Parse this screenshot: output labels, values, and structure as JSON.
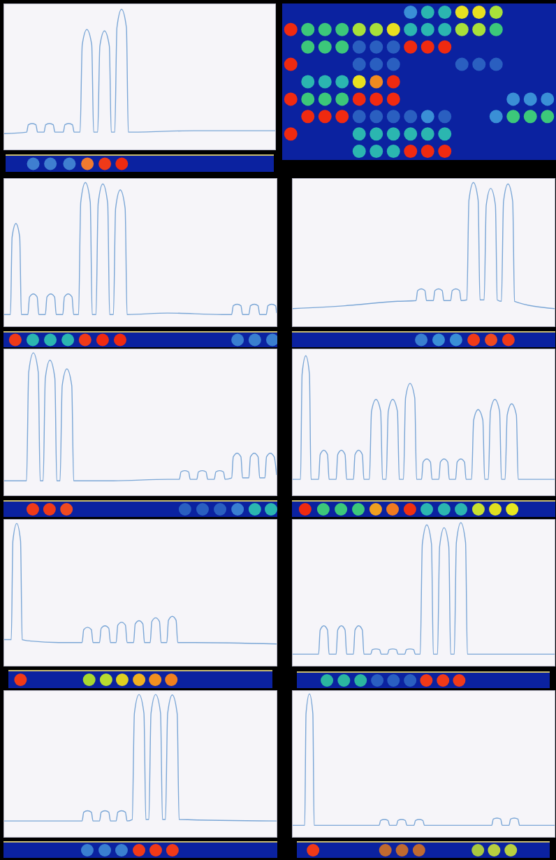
{
  "chart_data": [
    {
      "type": "line",
      "color": "#7aa6d6",
      "xlim": [
        0,
        100
      ],
      "ylim": [
        0,
        100
      ],
      "tick_labels": false,
      "x": [
        0,
        8.3,
        8.9,
        10.3,
        11.7,
        12.3,
        14.7,
        15.3,
        16.7,
        18.1,
        18.7,
        21.8,
        22.4,
        23.8,
        25.2,
        25.8,
        28,
        28.8,
        30.5,
        32.3,
        33,
        34.5,
        35.3,
        37,
        38.8,
        39.5,
        40.8,
        41.6,
        43.3,
        45.1,
        45.8,
        70,
        100
      ],
      "values": [
        11,
        12,
        17.1,
        18,
        17.1,
        12,
        12,
        17.1,
        18,
        17.1,
        12,
        12,
        17.1,
        18,
        17.1,
        12,
        12,
        72.4,
        83,
        72.4,
        12,
        12,
        71.5,
        82,
        71.5,
        12,
        12,
        84.3,
        97,
        84.3,
        12,
        13,
        13
      ],
      "spots": {
        "x": [
          10.3,
          16.7,
          23.8,
          30.5,
          37,
          43.3
        ],
        "colors": [
          "#3f7fd0",
          "#3f7fd0",
          "#3f7fd0",
          "#f07a30",
          "#f03a18",
          "#f02a10"
        ]
      }
    },
    {
      "type": "scatter",
      "xlim": [
        -0.5,
        15.5
      ],
      "ylim": [
        -0.5,
        8.5
      ],
      "tick_labels": false,
      "cells": [
        [
          null,
          null,
          null,
          null,
          null,
          null,
          null,
          "#3a8fd6",
          "#2bb6b0",
          "#2bb6b0",
          "#e8e020",
          "#e8e020",
          "#a8e03a",
          null,
          null,
          null
        ],
        [
          "#f02a10",
          "#3cc87a",
          "#3cc87a",
          "#3cc87a",
          "#a8e03a",
          "#a8e03a",
          "#e8e020",
          "#2bb6b0",
          "#2bb6b0",
          "#2bb6b0",
          "#a8e03a",
          "#a8e03a",
          "#3cc87a",
          null,
          null,
          null
        ],
        [
          null,
          "#3cc87a",
          "#3cc87a",
          "#3cc87a",
          "#2a5fc0",
          "#2a5fc0",
          "#2a5fc0",
          "#f02a10",
          "#f02a10",
          "#f02a10",
          null,
          null,
          null,
          null,
          null,
          null
        ],
        [
          "#f02a10",
          null,
          null,
          null,
          "#2a5fc0",
          "#2a5fc0",
          "#2a5fc0",
          null,
          null,
          null,
          "#2a5fc0",
          "#2a5fc0",
          "#2a5fc0",
          null,
          null,
          null
        ],
        [
          null,
          "#2bb6b0",
          "#2bb6b0",
          "#2bb6b0",
          "#e8e020",
          "#f08a20",
          "#f02a10",
          null,
          null,
          null,
          null,
          null,
          null,
          null,
          null,
          null
        ],
        [
          "#f02a10",
          "#3cc87a",
          "#3cc87a",
          "#3cc87a",
          "#f02a10",
          "#f02a10",
          "#f02a10",
          null,
          null,
          null,
          null,
          null,
          null,
          "#3a8fd6",
          "#3a8fd6",
          "#3a8fd6"
        ],
        [
          null,
          "#f02a10",
          "#f02a10",
          "#f02a10",
          "#2a5fc0",
          "#2a5fc0",
          "#2a5fc0",
          "#2a5fc0",
          "#3a8fd6",
          "#2a5fc0",
          null,
          null,
          "#3a8fd6",
          "#3cc87a",
          "#3cc87a",
          "#3cc87a"
        ],
        [
          "#f02a10",
          null,
          null,
          null,
          "#2bb6b0",
          "#2bb6b0",
          "#2bb6b0",
          "#2bb6b0",
          "#2bb6b0",
          "#2bb6b0",
          null,
          null,
          null,
          null,
          null,
          null
        ],
        [
          null,
          null,
          null,
          null,
          "#2bb6b0",
          "#2bb6b0",
          "#2bb6b0",
          "#f02a10",
          "#f02a10",
          "#f02a10",
          null,
          null,
          null,
          null,
          null,
          null
        ]
      ]
    },
    {
      "type": "line",
      "color": "#7aa6d6",
      "xlim": [
        0,
        100
      ],
      "ylim": [
        0,
        100
      ],
      "tick_labels": false,
      "x": [
        0,
        2.3,
        2.9,
        4.3,
        5.7,
        6.3,
        8.7,
        9.3,
        10.7,
        12.1,
        12.7,
        15.1,
        15.7,
        17.1,
        18.5,
        19.1,
        21.5,
        22.1,
        23.5,
        24.9,
        25.5,
        27.3,
        28.1,
        29.8,
        31.6,
        32.3,
        33.7,
        34.5,
        36.2,
        38,
        38.7,
        40.1,
        40.9,
        42.6,
        44.4,
        45.1,
        60,
        80,
        83.5,
        84.1,
        85.5,
        86.9,
        87.5,
        89.8,
        90.4,
        91.8,
        93.2,
        93.8,
        96.2,
        96.8,
        98.2,
        99.6,
        100
      ],
      "values": [
        8,
        8,
        60.7,
        70,
        60.7,
        8,
        8,
        19.9,
        22,
        19.9,
        8,
        8,
        19.9,
        22,
        19.9,
        8,
        8,
        19.9,
        22,
        19.9,
        8,
        8,
        84.5,
        98,
        84.5,
        8,
        8,
        83.6,
        97,
        83.6,
        8,
        8,
        80.3,
        93,
        80.3,
        8,
        9,
        8,
        8,
        14,
        15,
        14,
        8,
        8,
        14,
        15,
        14,
        8,
        8,
        14,
        15,
        14,
        9
      ],
      "spots": {
        "x": [
          4.3,
          10.7,
          17.1,
          23.5,
          29.8,
          36.2,
          42.6,
          85.5,
          91.8,
          98.2
        ],
        "colors": [
          "#f03a18",
          "#2bb6b0",
          "#2bb6b0",
          "#2bb6b0",
          "#f03a18",
          "#f02a10",
          "#f02a10",
          "#3a7fd0",
          "#3a7fd0",
          "#3a7fd0"
        ]
      }
    },
    {
      "type": "line",
      "color": "#7aa6d6",
      "xlim": [
        0,
        100
      ],
      "ylim": [
        0,
        100
      ],
      "tick_labels": false,
      "x": [
        0,
        20,
        40,
        47.1,
        47.7,
        49.1,
        50.5,
        51.1,
        53.7,
        54.3,
        55.7,
        57.1,
        57.7,
        60.3,
        60.9,
        62.3,
        63.7,
        64.3,
        66.5,
        67.3,
        69,
        70.8,
        71.5,
        73.1,
        73.9,
        75.6,
        77.4,
        78.1,
        79.7,
        80.5,
        82.2,
        84,
        84.7,
        100
      ],
      "values": [
        12,
        14,
        17,
        17.5,
        24.3,
        25.5,
        24.3,
        17.5,
        17.5,
        24.3,
        25.5,
        24.3,
        17.5,
        17.5,
        24.3,
        25.5,
        24.3,
        17.5,
        18,
        86,
        98,
        86,
        18,
        18,
        82.6,
        94,
        82.6,
        18,
        17,
        85,
        97,
        85,
        17,
        12
      ],
      "spots": {
        "x": [
          49.1,
          55.7,
          62.3,
          69,
          75.6,
          82.2
        ],
        "colors": [
          "#3a7fd0",
          "#3a8fd6",
          "#3a8fd6",
          "#f03a18",
          "#f04a20",
          "#f03a18"
        ]
      }
    },
    {
      "type": "line",
      "color": "#7aa6d6",
      "xlim": [
        0,
        100
      ],
      "ylim": [
        0,
        100
      ],
      "tick_labels": false,
      "x": [
        0,
        8.2,
        9,
        10.7,
        12.5,
        13.2,
        14.3,
        15.1,
        16.8,
        18.6,
        19.3,
        20.5,
        21.3,
        23,
        24.8,
        25.5,
        40,
        60,
        64.3,
        64.9,
        66.3,
        67.7,
        68.3,
        70.7,
        71.3,
        72.7,
        74.1,
        74.7,
        77.1,
        77.7,
        79.1,
        80.5,
        81.1,
        83.5,
        84.1,
        85.5,
        86.9,
        87.5,
        89.8,
        90.4,
        91.8,
        93.2,
        93.8,
        95.7,
        96.3,
        97.7,
        99.1,
        100
      ],
      "values": [
        10,
        10,
        84.8,
        98,
        84.8,
        10,
        10,
        80.6,
        93,
        80.6,
        10,
        10,
        75.5,
        87,
        75.5,
        10,
        10,
        11,
        11,
        16.1,
        17,
        16.1,
        11,
        11,
        16.1,
        17,
        16.1,
        11,
        11,
        16.1,
        17,
        16.1,
        11,
        12,
        26.5,
        29,
        26.5,
        12,
        12,
        26.5,
        29,
        26.5,
        12,
        12,
        26.5,
        29,
        26.5,
        14
      ],
      "spots": {
        "x": [
          10.7,
          16.8,
          23,
          66.3,
          72.7,
          79.1,
          85.5,
          91.8,
          97.7
        ],
        "colors": [
          "#f03a18",
          "#f03a18",
          "#f04a20",
          "#2a5fc0",
          "#2a5fc0",
          "#2a5fc0",
          "#3a7fd0",
          "#2bb6b0",
          "#2bb6b0"
        ]
      }
    },
    {
      "type": "line",
      "color": "#7aa6d6",
      "xlim": [
        0,
        100
      ],
      "ylim": [
        0,
        100
      ],
      "tick_labels": false,
      "x": [
        0,
        3,
        3.6,
        5,
        6.4,
        7,
        9.9,
        10.5,
        11.9,
        13.3,
        13.9,
        16.6,
        17.2,
        18.6,
        20,
        20.6,
        23.2,
        23.8,
        25.2,
        26.6,
        27.2,
        29.3,
        30.1,
        31.8,
        33.6,
        34.3,
        35.7,
        36.5,
        38.2,
        40,
        40.7,
        42.3,
        43.1,
        44.8,
        46.6,
        47.3,
        49.2,
        49.8,
        51.2,
        52.6,
        53.2,
        55.8,
        56.4,
        57.8,
        59.2,
        59.8,
        62.2,
        62.8,
        64.2,
        65.6,
        66.2,
        68.3,
        69.1,
        70.8,
        72.6,
        73.3,
        74.7,
        75.5,
        77.2,
        79,
        79.7,
        81.1,
        81.9,
        83.6,
        85.4,
        86.1,
        100
      ],
      "values": [
        11,
        11,
        83.3,
        96,
        83.3,
        11,
        11,
        28,
        31,
        28,
        11,
        11,
        28,
        31,
        28,
        11,
        11,
        28,
        31,
        28,
        11,
        11,
        57.8,
        66,
        57.8,
        11,
        11,
        57.8,
        66,
        57.8,
        11,
        11,
        67.1,
        77,
        67.1,
        11,
        11,
        22.9,
        25,
        22.9,
        11,
        11,
        22.9,
        25,
        22.9,
        11,
        11,
        22.9,
        25,
        22.9,
        11,
        11,
        51.8,
        59,
        51.8,
        11,
        11,
        57.8,
        66,
        57.8,
        11,
        11,
        55.2,
        63,
        55.2,
        11,
        11
      ],
      "spots": {
        "x": [
          5,
          11.9,
          18.6,
          25.2,
          31.8,
          38.2,
          44.8,
          51.2,
          57.8,
          64.2,
          70.8,
          77.2,
          83.6
        ],
        "colors": [
          "#ef2a10",
          "#3cc87a",
          "#3cc87a",
          "#3cc87a",
          "#f0a020",
          "#f07a20",
          "#f03010",
          "#2bb6b0",
          "#2bb6b0",
          "#2bb6b0",
          "#c8e030",
          "#e0e020",
          "#e8e820"
        ]
      }
    },
    {
      "type": "line",
      "color": "#7aa6d6",
      "xlim": [
        0,
        100
      ],
      "ylim": [
        0,
        100
      ],
      "tick_labels": false,
      "x": [
        0,
        2.6,
        3.2,
        4.6,
        6,
        6.6,
        10,
        20,
        28.6,
        29.2,
        30.6,
        32,
        32.6,
        35,
        35.6,
        37,
        38.4,
        39,
        41.1,
        41.7,
        43.1,
        44.5,
        45.1,
        47.5,
        48.1,
        49.5,
        50.9,
        51.5,
        53.6,
        54.2,
        55.6,
        57,
        57.6,
        59.7,
        60.3,
        61.7,
        63.1,
        63.7,
        70,
        100
      ],
      "values": [
        18,
        18,
        86,
        98,
        86,
        18,
        17,
        16,
        16,
        24.9,
        26.5,
        24.9,
        16,
        16,
        25.8,
        27.5,
        25.8,
        16,
        16,
        27.9,
        30,
        27.9,
        16,
        16,
        28.8,
        31,
        28.8,
        16,
        16,
        30.5,
        33,
        30.5,
        16,
        16,
        31.3,
        34,
        31.3,
        16,
        16,
        15
      ],
      "spots": {
        "x": [
          4.6,
          30.6,
          37,
          43.1,
          49.5,
          55.6,
          61.7
        ],
        "colors": [
          "#f03a18",
          "#a8d830",
          "#b8dc30",
          "#e0d020",
          "#f0b020",
          "#f09020",
          "#f08020"
        ]
      }
    },
    {
      "type": "line",
      "color": "#7aa6d6",
      "xlim": [
        0,
        100
      ],
      "ylim": [
        0,
        100
      ],
      "tick_labels": false,
      "x": [
        0,
        9.9,
        10.5,
        11.9,
        13.3,
        13.9,
        16.6,
        17.2,
        18.6,
        20,
        20.6,
        23.2,
        23.8,
        25.2,
        26.6,
        27.2,
        29.8,
        30.4,
        31.8,
        33.2,
        33.8,
        36.2,
        36.8,
        38.2,
        39.6,
        40.2,
        42.8,
        43.4,
        44.8,
        46.2,
        46.8,
        48.7,
        49.5,
        51.2,
        53,
        53.7,
        55.3,
        56.1,
        57.8,
        59.6,
        60.3,
        61.7,
        62.5,
        64.2,
        66,
        66.7,
        100
      ],
      "values": [
        8,
        8,
        24.6,
        27.5,
        24.6,
        8,
        8,
        24.6,
        27.5,
        24.6,
        8,
        8,
        24.6,
        27.5,
        24.6,
        8,
        8,
        11.1,
        11.6,
        11.1,
        8,
        8,
        11.1,
        11.6,
        11.1,
        8,
        8,
        11.1,
        11.6,
        11.1,
        8,
        8,
        83.7,
        97,
        83.7,
        8,
        8,
        82,
        95,
        82,
        8,
        8,
        84.9,
        98.5,
        84.9,
        8,
        8
      ],
      "spots": {
        "x": [
          11.9,
          18.6,
          25.2,
          31.8,
          38.2,
          44.8,
          51.2,
          57.8,
          64.2
        ],
        "colors": [
          "#2bb6a0",
          "#2bb6a0",
          "#2bb6a0",
          "#2a5fc0",
          "#2a5fc0",
          "#2a5fc0",
          "#f03a18",
          "#f03a18",
          "#f03a18"
        ]
      }
    },
    {
      "type": "line",
      "color": "#7aa6d6",
      "xlim": [
        0,
        100
      ],
      "ylim": [
        0,
        100
      ],
      "tick_labels": false,
      "x": [
        0,
        28.6,
        29.2,
        30.6,
        32,
        32.6,
        35,
        35.6,
        37,
        38.4,
        39,
        41.1,
        41.7,
        43.1,
        44.5,
        45.1,
        47,
        47.8,
        49.5,
        51.3,
        52,
        53.1,
        53.9,
        55.6,
        57.4,
        58.1,
        59.2,
        60,
        61.7,
        63.5,
        64.2,
        100
      ],
      "values": [
        11,
        11,
        17,
        18,
        17,
        11,
        11,
        17,
        18,
        17,
        11,
        11,
        17,
        18,
        17,
        11,
        12,
        85.1,
        98,
        85.1,
        12,
        12,
        85.1,
        98,
        85.1,
        12,
        12,
        84.8,
        97.7,
        84.8,
        12,
        11
      ],
      "spots": {
        "x": [
          30.6,
          37,
          43.1,
          49.5,
          55.6,
          61.7
        ],
        "colors": [
          "#3a7fd0",
          "#3a7fd0",
          "#3a7fd0",
          "#f03a18",
          "#f03a18",
          "#f03a18"
        ]
      }
    },
    {
      "type": "line",
      "color": "#7aa6d6",
      "xlim": [
        0,
        100
      ],
      "ylim": [
        0,
        100
      ],
      "tick_labels": false,
      "x": [
        0,
        4.6,
        5.1,
        6.4,
        7.7,
        8.2,
        33,
        33.6,
        35,
        36.4,
        37,
        39.6,
        40.2,
        41.6,
        43,
        43.6,
        46.3,
        46.9,
        48.3,
        49.7,
        50.3,
        76,
        76.6,
        78,
        79.4,
        80,
        82.6,
        83.2,
        84.6,
        86,
        86.6,
        100
      ],
      "values": [
        8,
        8,
        84.9,
        98.5,
        84.9,
        8,
        8,
        11.4,
        12,
        11.4,
        8,
        8,
        11.4,
        12,
        11.4,
        8,
        8,
        11.4,
        12,
        11.4,
        8,
        8,
        12.3,
        13,
        12.3,
        8,
        8,
        12.3,
        13,
        12.3,
        8,
        8
      ],
      "spots": {
        "x": [
          6.4,
          35,
          41.6,
          48.3,
          71.6,
          78,
          84.6
        ],
        "colors": [
          "#f03a18",
          "#c06a30",
          "#c06a30",
          "#c06a30",
          "#a8c840",
          "#b8d040",
          "#b8d040"
        ]
      }
    }
  ]
}
